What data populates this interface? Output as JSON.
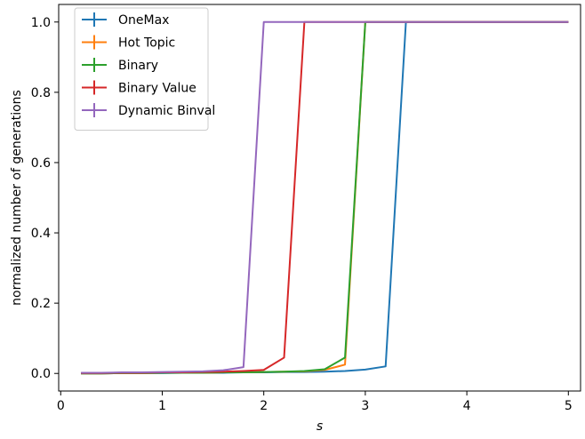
{
  "chart_data": {
    "type": "line",
    "title": "",
    "xlabel": "s",
    "ylabel": "normalized number of generations",
    "xlim": [
      -0.02,
      5.12
    ],
    "ylim": [
      -0.05,
      1.05
    ],
    "xticks": [
      0,
      1,
      2,
      3,
      4,
      5
    ],
    "xtick_labels": [
      "0",
      "1",
      "2",
      "3",
      "4",
      "5"
    ],
    "yticks": [
      0.0,
      0.2,
      0.4,
      0.6,
      0.8,
      1.0
    ],
    "ytick_labels": [
      "0.0",
      "0.2",
      "0.4",
      "0.6",
      "0.8",
      "1.0"
    ],
    "grid": false,
    "legend_position": "top-left",
    "series": [
      {
        "name": "OneMax",
        "color": "#1f77b4",
        "x": [
          0.2,
          0.4,
          0.6,
          0.8,
          1.0,
          1.2,
          1.4,
          1.6,
          1.8,
          2.0,
          2.2,
          2.4,
          2.6,
          2.8,
          3.0,
          3.2,
          3.4,
          3.6,
          3.8,
          4.0,
          4.2,
          4.4,
          4.6,
          4.8,
          5.0
        ],
        "y": [
          0.0,
          0.0,
          0.001,
          0.001,
          0.001,
          0.002,
          0.002,
          0.002,
          0.003,
          0.003,
          0.004,
          0.004,
          0.005,
          0.007,
          0.011,
          0.02,
          1.0,
          1.0,
          1.0,
          1.0,
          1.0,
          1.0,
          1.0,
          1.0,
          1.0
        ]
      },
      {
        "name": "Hot Topic",
        "color": "#ff7f0e",
        "x": [
          0.2,
          0.4,
          0.6,
          0.8,
          1.0,
          1.2,
          1.4,
          1.6,
          1.8,
          2.0,
          2.2,
          2.4,
          2.6,
          2.8,
          3.0,
          3.2,
          3.4,
          3.6,
          3.8,
          4.0,
          4.2,
          4.4,
          4.6,
          4.8,
          5.0
        ],
        "y": [
          0.0,
          0.0,
          0.001,
          0.001,
          0.002,
          0.002,
          0.002,
          0.003,
          0.003,
          0.004,
          0.005,
          0.006,
          0.01,
          0.025,
          1.0,
          1.0,
          1.0,
          1.0,
          1.0,
          1.0,
          1.0,
          1.0,
          1.0,
          1.0,
          1.0
        ]
      },
      {
        "name": "Binary",
        "color": "#2ca02c",
        "x": [
          0.2,
          0.4,
          0.6,
          0.8,
          1.0,
          1.2,
          1.4,
          1.6,
          1.8,
          2.0,
          2.2,
          2.4,
          2.6,
          2.8,
          3.0,
          3.2,
          3.4,
          3.6,
          3.8,
          4.0,
          4.2,
          4.4,
          4.6,
          4.8,
          5.0
        ],
        "y": [
          0.0,
          0.0,
          0.001,
          0.001,
          0.002,
          0.002,
          0.002,
          0.003,
          0.003,
          0.004,
          0.005,
          0.007,
          0.012,
          0.045,
          1.0,
          1.0,
          1.0,
          1.0,
          1.0,
          1.0,
          1.0,
          1.0,
          1.0,
          1.0,
          1.0
        ]
      },
      {
        "name": "Binary Value",
        "color": "#d62728",
        "x": [
          0.2,
          0.4,
          0.6,
          0.8,
          1.0,
          1.2,
          1.4,
          1.6,
          1.8,
          2.0,
          2.2,
          2.4,
          2.6,
          2.8,
          3.0,
          3.2,
          3.4,
          3.6,
          3.8,
          4.0,
          4.2,
          4.4,
          4.6,
          4.8,
          5.0
        ],
        "y": [
          0.001,
          0.001,
          0.002,
          0.002,
          0.003,
          0.003,
          0.004,
          0.005,
          0.007,
          0.01,
          0.045,
          1.0,
          1.0,
          1.0,
          1.0,
          1.0,
          1.0,
          1.0,
          1.0,
          1.0,
          1.0,
          1.0,
          1.0,
          1.0,
          1.0
        ]
      },
      {
        "name": "Dynamic Binval",
        "color": "#9467bd",
        "x": [
          0.2,
          0.4,
          0.6,
          0.8,
          1.0,
          1.2,
          1.4,
          1.6,
          1.8,
          2.0,
          2.2,
          2.4,
          2.6,
          2.8,
          3.0,
          3.2,
          3.4,
          3.6,
          3.8,
          4.0,
          4.2,
          4.4,
          4.6,
          4.8,
          5.0
        ],
        "y": [
          0.002,
          0.002,
          0.003,
          0.003,
          0.004,
          0.005,
          0.006,
          0.009,
          0.018,
          1.0,
          1.0,
          1.0,
          1.0,
          1.0,
          1.0,
          1.0,
          1.0,
          1.0,
          1.0,
          1.0,
          1.0,
          1.0,
          1.0,
          1.0,
          1.0
        ]
      }
    ]
  }
}
